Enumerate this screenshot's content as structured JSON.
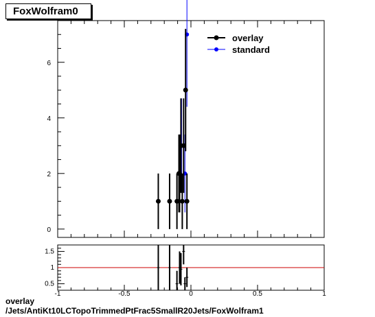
{
  "header": {
    "title": "FoxWolfram0"
  },
  "footer": {
    "line1": "overlay",
    "line2": "/Jets/AntiKt10LCTopoTrimmedPtFrac5SmallR20Jets/FoxWolfram1"
  },
  "chart_data": [
    {
      "type": "scatter",
      "title": "FoxWolfram0",
      "xlabel": "",
      "ylabel": "",
      "xlim": [
        -1,
        1
      ],
      "ylim": [
        -0.3,
        7.5
      ],
      "yticks": [
        "0",
        "2",
        "4",
        "6"
      ],
      "xticks": [],
      "legend": {
        "placement": "top-right",
        "entries": [
          "overlay",
          "standard"
        ]
      },
      "colors": {
        "overlay": "#000000",
        "standard": "#0000ff"
      },
      "series": [
        {
          "name": "overlay",
          "x": [
            -0.245,
            -0.16,
            -0.105,
            -0.09,
            -0.085,
            -0.075,
            -0.065,
            -0.055,
            -0.04,
            -0.03
          ],
          "y": [
            1,
            1,
            1,
            2,
            2,
            3,
            1,
            3,
            5,
            1
          ],
          "yerr": [
            1,
            1,
            1,
            1.4,
            1.4,
            1.7,
            1,
            1.7,
            2.2,
            1
          ]
        },
        {
          "name": "standard",
          "x": [
            -0.085,
            -0.07,
            -0.045,
            -0.03
          ],
          "y": [
            2,
            3,
            2,
            7
          ],
          "yerr": [
            1.4,
            1.7,
            1.4,
            2.6
          ]
        }
      ]
    },
    {
      "type": "scatter",
      "xlim": [
        -1,
        1
      ],
      "ylim": [
        0.3,
        1.7
      ],
      "yticks": [
        "0.5",
        "1",
        "1.5"
      ],
      "xticks": [
        "-1",
        "-0.5",
        "0",
        "0.5",
        "1"
      ],
      "reference_line": 1,
      "colors": {
        "ratio_line": "#cc0000"
      },
      "series": [
        {
          "name": "ratio",
          "x": [
            -0.245,
            -0.16,
            -0.105,
            -0.085,
            -0.075,
            -0.055,
            -0.045,
            -0.03
          ],
          "y": [
            1,
            1,
            0.5,
            1,
            0.95,
            1.5,
            0.5,
            0.7
          ],
          "yerr": [
            0.9,
            0.9,
            0.4,
            0.5,
            0.5,
            0.4,
            0.2,
            0.3
          ]
        }
      ]
    }
  ]
}
